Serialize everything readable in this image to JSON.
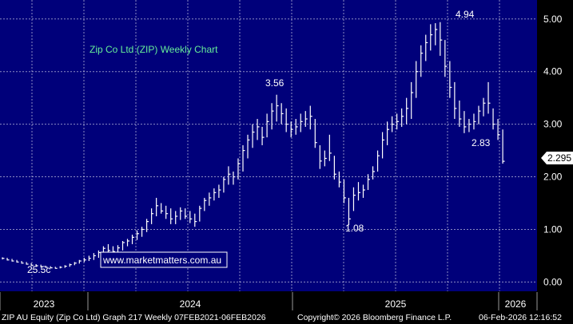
{
  "chart_data": {
    "type": "bar",
    "subtype": "weekly-ohlc",
    "title": "Zip Co Ltd (ZIP) Weekly Chart",
    "ylim": [
      -0.1,
      5.3
    ],
    "y_ticks": [
      "0.00",
      "1.00",
      "2.00",
      "3.00",
      "4.00",
      "5.00"
    ],
    "x_ticks": [
      "2023",
      "2024",
      "2025",
      "2026"
    ],
    "last_price": "2.295",
    "grid": true,
    "colors": {
      "background": "#00007a",
      "bars": "#ffffff",
      "title": "#66ee99",
      "last_price_box": "#ffffff"
    },
    "annotations": [
      {
        "text": "25.5c",
        "x": "2023-09",
        "y": 0.255
      },
      {
        "text": "3.56",
        "x": "2024-07",
        "y": 3.56
      },
      {
        "text": "1.08",
        "x": "2024-12",
        "y": 1.08
      },
      {
        "text": "4.94",
        "x": "2025-07",
        "y": 4.94
      },
      {
        "text": "2.83",
        "x": "2025-11",
        "y": 2.83
      }
    ],
    "series": [
      {
        "values": [
          [
            0.47,
            0.43,
            0.45
          ],
          [
            0.46,
            0.41,
            0.42
          ],
          [
            0.44,
            0.39,
            0.4
          ],
          [
            0.42,
            0.37,
            0.38
          ],
          [
            0.4,
            0.35,
            0.36
          ],
          [
            0.38,
            0.33,
            0.34
          ],
          [
            0.36,
            0.31,
            0.32
          ],
          [
            0.34,
            0.3,
            0.31
          ],
          [
            0.33,
            0.28,
            0.29
          ],
          [
            0.31,
            0.27,
            0.28
          ],
          [
            0.3,
            0.26,
            0.27
          ],
          [
            0.29,
            0.255,
            0.26
          ],
          [
            0.3,
            0.26,
            0.28
          ],
          [
            0.32,
            0.27,
            0.3
          ],
          [
            0.35,
            0.29,
            0.33
          ],
          [
            0.38,
            0.32,
            0.36
          ],
          [
            0.42,
            0.35,
            0.4
          ],
          [
            0.46,
            0.38,
            0.42
          ],
          [
            0.5,
            0.4,
            0.45
          ],
          [
            0.55,
            0.42,
            0.5
          ],
          [
            0.6,
            0.46,
            0.56
          ],
          [
            0.68,
            0.52,
            0.64
          ],
          [
            0.72,
            0.55,
            0.6
          ],
          [
            0.68,
            0.52,
            0.58
          ],
          [
            0.7,
            0.55,
            0.65
          ],
          [
            0.78,
            0.6,
            0.75
          ],
          [
            0.82,
            0.68,
            0.78
          ],
          [
            0.9,
            0.72,
            0.85
          ],
          [
            0.98,
            0.8,
            0.92
          ],
          [
            1.05,
            0.86,
            1.0
          ],
          [
            1.2,
            0.95,
            1.15
          ],
          [
            1.4,
            1.1,
            1.3
          ],
          [
            1.6,
            1.25,
            1.45
          ],
          [
            1.5,
            1.3,
            1.35
          ],
          [
            1.45,
            1.2,
            1.3
          ],
          [
            1.4,
            1.1,
            1.2
          ],
          [
            1.35,
            1.1,
            1.25
          ],
          [
            1.42,
            1.18,
            1.35
          ],
          [
            1.4,
            1.2,
            1.25
          ],
          [
            1.35,
            1.12,
            1.2
          ],
          [
            1.3,
            1.05,
            1.15
          ],
          [
            1.45,
            1.15,
            1.4
          ],
          [
            1.6,
            1.35,
            1.55
          ],
          [
            1.7,
            1.45,
            1.6
          ],
          [
            1.78,
            1.55,
            1.7
          ],
          [
            1.85,
            1.6,
            1.75
          ],
          [
            2.0,
            1.7,
            1.95
          ],
          [
            2.2,
            1.85,
            2.05
          ],
          [
            2.1,
            1.85,
            2.0
          ],
          [
            2.35,
            1.95,
            2.25
          ],
          [
            2.6,
            2.1,
            2.5
          ],
          [
            2.8,
            2.35,
            2.7
          ],
          [
            3.0,
            2.55,
            2.85
          ],
          [
            3.1,
            2.7,
            2.95
          ],
          [
            2.95,
            2.6,
            2.75
          ],
          [
            3.2,
            2.75,
            3.05
          ],
          [
            3.4,
            2.9,
            3.25
          ],
          [
            3.56,
            3.05,
            3.35
          ],
          [
            3.4,
            3.0,
            3.2
          ],
          [
            3.3,
            2.85,
            3.0
          ],
          [
            3.05,
            2.75,
            2.9
          ],
          [
            3.1,
            2.8,
            2.95
          ],
          [
            3.2,
            2.85,
            3.05
          ],
          [
            3.25,
            2.95,
            3.1
          ],
          [
            3.35,
            2.9,
            3.15
          ],
          [
            3.1,
            2.55,
            2.65
          ],
          [
            2.6,
            2.15,
            2.3
          ],
          [
            2.5,
            2.2,
            2.35
          ],
          [
            2.8,
            2.3,
            2.45
          ],
          [
            2.4,
            1.95,
            2.05
          ],
          [
            2.1,
            1.8,
            1.9
          ],
          [
            1.95,
            1.5,
            1.6
          ],
          [
            1.6,
            1.08,
            1.2
          ],
          [
            1.8,
            1.35,
            1.65
          ],
          [
            1.9,
            1.55,
            1.7
          ],
          [
            1.85,
            1.6,
            1.75
          ],
          [
            2.05,
            1.75,
            1.95
          ],
          [
            2.2,
            1.95,
            2.1
          ],
          [
            2.5,
            2.1,
            2.4
          ],
          [
            2.85,
            2.35,
            2.7
          ],
          [
            3.05,
            2.6,
            2.9
          ],
          [
            3.15,
            2.85,
            3.0
          ],
          [
            3.2,
            2.9,
            3.05
          ],
          [
            3.3,
            2.95,
            3.15
          ],
          [
            3.5,
            3.0,
            3.3
          ],
          [
            3.8,
            3.1,
            3.6
          ],
          [
            4.2,
            3.5,
            4.0
          ],
          [
            4.5,
            3.9,
            4.35
          ],
          [
            4.7,
            4.2,
            4.55
          ],
          [
            4.9,
            4.4,
            4.7
          ],
          [
            4.92,
            4.5,
            4.8
          ],
          [
            4.94,
            4.3,
            4.6
          ],
          [
            4.6,
            3.9,
            4.1
          ],
          [
            4.2,
            3.5,
            3.7
          ],
          [
            3.8,
            3.1,
            3.3
          ],
          [
            3.45,
            2.95,
            3.1
          ],
          [
            3.25,
            2.83,
            2.95
          ],
          [
            3.1,
            2.85,
            3.0
          ],
          [
            3.2,
            2.9,
            3.05
          ],
          [
            3.35,
            3.0,
            3.25
          ],
          [
            3.5,
            3.15,
            3.4
          ],
          [
            3.8,
            3.2,
            3.4
          ],
          [
            3.3,
            2.9,
            3.0
          ],
          [
            3.1,
            2.7,
            2.8
          ],
          [
            2.9,
            2.25,
            2.295
          ]
        ]
      }
    ]
  },
  "watermark": "www.marketmatters.com.au",
  "footer": {
    "left": "ZIP AU Equity (Zip Co Ltd) Graph 217 Weekly 07FEB2021-06FEB2026",
    "center": "Copyright© 2026 Bloomberg Finance L.P.",
    "right": "06-Feb-2026 12:16:52"
  }
}
